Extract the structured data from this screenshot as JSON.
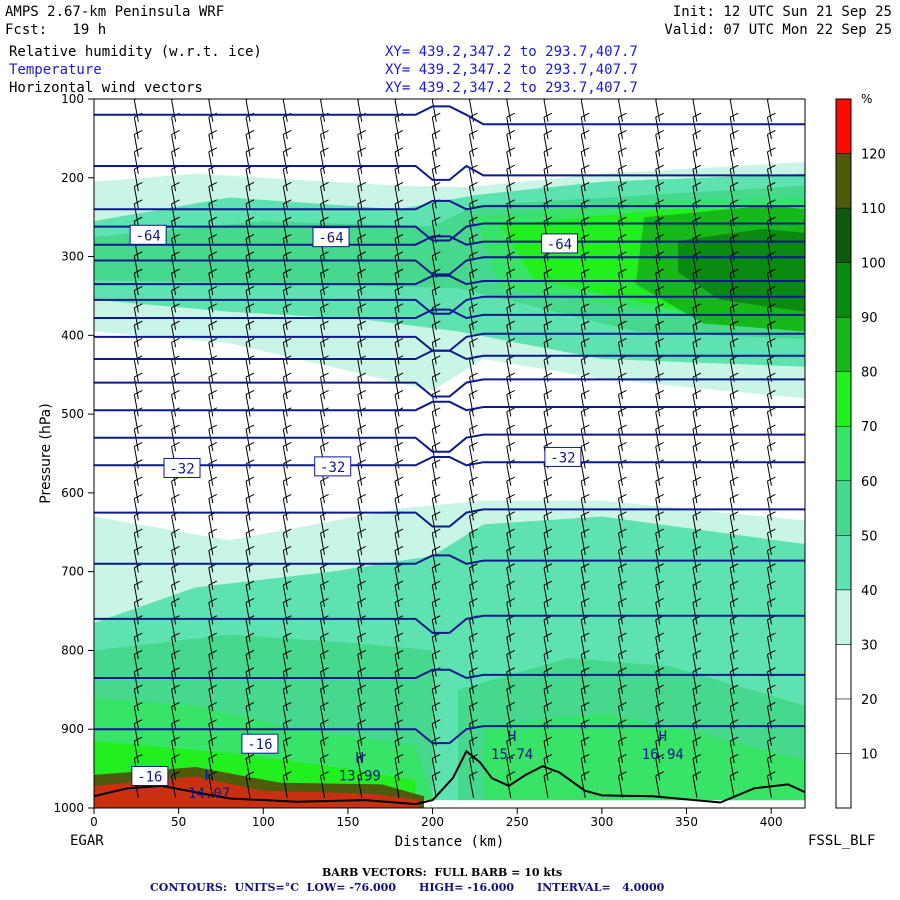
{
  "header": {
    "title": "AMPS 2.67-km Peninsula WRF",
    "forecast": "Fcst:   19 h",
    "init": "Init: 12 UTC Sun 21 Sep 25",
    "valid": "Valid: 07 UTC Mon 22 Sep 25",
    "field1": "Relative humidity (w.r.t. ice)",
    "field2": "Temperature",
    "field3": "Horizontal wind vectors",
    "xy1": "XY= 439.2,347.2 to 293.7,407.7",
    "xy2": "XY= 439.2,347.2 to 293.7,407.7",
    "xy3": "XY= 439.2,347.2 to 293.7,407.7"
  },
  "footer": {
    "left_station": "EGAR",
    "right_station": "FSSL_BLF",
    "barb_note": "BARB VECTORS:  FULL BARB = 10 kts",
    "contours_note": "CONTOURS:  UNITS=°C  LOW= -76.000      HIGH= -16.000      INTERVAL=   4.0000"
  },
  "colors": {
    "rh_white": "#ffffff",
    "rh_30": "#c8f5e6",
    "rh_40": "#5ee2b0",
    "rh_50": "#46d88c",
    "rh_60": "#38e468",
    "rh_70": "#22f01e",
    "rh_80": "#16b81a",
    "rh_90": "#0a8a10",
    "rh_100": "#0d5a0d",
    "rh_110": "#4e5a0c",
    "rh_120": "#c83010",
    "rh_130": "#ff0a00",
    "temp_line": "#0c1a8c",
    "terrain": "#000000"
  },
  "chart_data": {
    "type": "heatmap",
    "title": "Relative humidity (w.r.t. ice), Temperature, Horizontal wind vectors",
    "xlabel": "Distance (km)",
    "ylabel": "Pressure (hPa)",
    "xlim": [
      0,
      420
    ],
    "ylim": [
      1000,
      100
    ],
    "x_ticks": [
      0,
      50,
      100,
      150,
      200,
      250,
      300,
      350,
      400
    ],
    "y_ticks": [
      100,
      200,
      300,
      400,
      500,
      600,
      700,
      800,
      900,
      1000
    ],
    "colorbar": {
      "unit": "%",
      "levels": [
        10,
        20,
        30,
        40,
        50,
        60,
        70,
        80,
        90,
        100,
        110,
        120
      ]
    },
    "temperature_contour_labels": [
      {
        "text": "-64",
        "x": 32,
        "p": 273
      },
      {
        "text": "-64",
        "x": 140,
        "p": 276
      },
      {
        "text": "-64",
        "x": 275,
        "p": 284
      },
      {
        "text": "-32",
        "x": 52,
        "p": 569
      },
      {
        "text": "-32",
        "x": 141,
        "p": 567
      },
      {
        "text": "-32",
        "x": 277,
        "p": 555
      },
      {
        "text": "-16",
        "x": 98,
        "p": 919
      },
      {
        "text": "-16",
        "x": 33,
        "p": 960
      }
    ],
    "extrema": [
      {
        "kind": "H",
        "value": "14.07",
        "x": 68,
        "p": 987
      },
      {
        "kind": "H",
        "value": "13.99",
        "x": 157,
        "p": 965
      },
      {
        "kind": "H",
        "value": "15.74",
        "x": 247,
        "p": 938
      },
      {
        "kind": "H",
        "value": "16.94",
        "x": 336,
        "p": 938
      }
    ]
  }
}
